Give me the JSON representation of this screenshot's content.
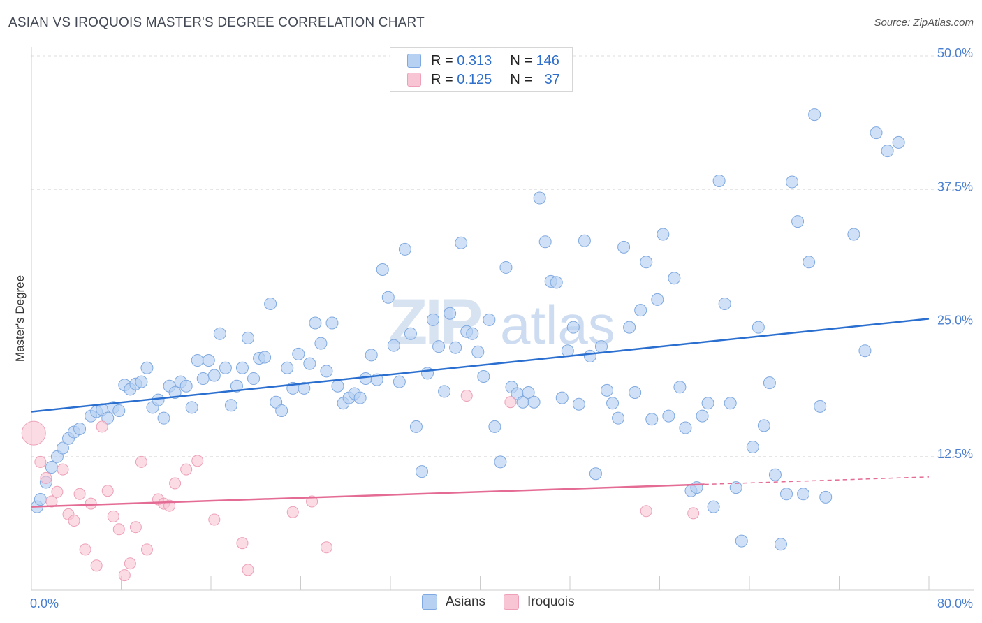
{
  "title": "ASIAN VS IROQUOIS MASTER'S DEGREE CORRELATION CHART",
  "source": "Source: ZipAtlas.com",
  "watermark": {
    "part1": "ZIP",
    "part2": "atlas"
  },
  "legend": {
    "rows": [
      {
        "r_label": "R =",
        "r_value": "0.313",
        "n_label": "N =",
        "n_value": "146"
      },
      {
        "r_label": "R =",
        "r_value": "0.125",
        "n_label": "N =",
        "n_value": "37"
      }
    ]
  },
  "colors": {
    "asians_fill": "#b7d1f2",
    "asians_stroke": "#7fa9e0",
    "asians_line": "#2a6fd0",
    "iroquois_fill": "#f8c5d4",
    "iroquois_stroke": "#eda0b8",
    "iroquois_line": "#e46b94",
    "tick_text": "#4a7fd0",
    "grid": "#dddddd"
  },
  "chart_data": {
    "type": "scatter",
    "title": "ASIAN VS IROQUOIS MASTER'S DEGREE CORRELATION CHART",
    "xlabel": "",
    "ylabel": "Master's Degree",
    "xlim": [
      0,
      80
    ],
    "ylim": [
      0,
      50
    ],
    "x_tick_labels": [
      "0.0%",
      "80.0%"
    ],
    "y_ticks": [
      12.5,
      25.0,
      37.5,
      50.0
    ],
    "y_tick_labels": [
      "12.5%",
      "25.0%",
      "37.5%",
      "50.0%"
    ],
    "grid": true,
    "legend_position": "top-center",
    "series": [
      {
        "name": "Asians",
        "r": 0.313,
        "n": 146,
        "trend": {
          "x": [
            0,
            80
          ],
          "y": [
            16.7,
            25.4
          ],
          "dashed_from": null
        },
        "points": [
          [
            0.5,
            7.8
          ],
          [
            0.8,
            8.5
          ],
          [
            1.3,
            10.1
          ],
          [
            1.8,
            11.5
          ],
          [
            2.3,
            12.5
          ],
          [
            2.8,
            13.3
          ],
          [
            3.3,
            14.2
          ],
          [
            3.8,
            14.8
          ],
          [
            4.3,
            15.1
          ],
          [
            5.3,
            16.3
          ],
          [
            5.8,
            16.7
          ],
          [
            6.3,
            16.9
          ],
          [
            6.8,
            16.1
          ],
          [
            7.3,
            17.1
          ],
          [
            7.8,
            16.8
          ],
          [
            8.3,
            19.2
          ],
          [
            8.8,
            18.8
          ],
          [
            9.3,
            19.3
          ],
          [
            9.8,
            19.5
          ],
          [
            10.3,
            20.8
          ],
          [
            10.8,
            17.1
          ],
          [
            11.3,
            17.8
          ],
          [
            11.8,
            16.1
          ],
          [
            12.3,
            19.1
          ],
          [
            12.8,
            18.5
          ],
          [
            13.3,
            19.5
          ],
          [
            13.8,
            19.1
          ],
          [
            14.3,
            17.1
          ],
          [
            14.8,
            21.5
          ],
          [
            15.3,
            19.8
          ],
          [
            15.8,
            21.5
          ],
          [
            16.3,
            20.1
          ],
          [
            16.8,
            24.0
          ],
          [
            17.3,
            20.8
          ],
          [
            17.8,
            17.3
          ],
          [
            18.3,
            19.1
          ],
          [
            18.8,
            20.8
          ],
          [
            19.3,
            23.6
          ],
          [
            19.8,
            19.8
          ],
          [
            20.3,
            21.7
          ],
          [
            20.8,
            21.8
          ],
          [
            21.3,
            26.8
          ],
          [
            21.8,
            17.6
          ],
          [
            22.3,
            16.8
          ],
          [
            22.8,
            20.8
          ],
          [
            23.3,
            18.9
          ],
          [
            23.8,
            22.1
          ],
          [
            24.3,
            18.9
          ],
          [
            24.8,
            21.2
          ],
          [
            25.3,
            25.0
          ],
          [
            25.8,
            23.1
          ],
          [
            26.3,
            20.5
          ],
          [
            26.8,
            25.0
          ],
          [
            27.3,
            19.1
          ],
          [
            27.8,
            17.5
          ],
          [
            28.3,
            18.0
          ],
          [
            28.8,
            18.4
          ],
          [
            29.3,
            18.0
          ],
          [
            29.8,
            19.8
          ],
          [
            30.3,
            22.0
          ],
          [
            30.8,
            19.7
          ],
          [
            31.3,
            30.0
          ],
          [
            31.8,
            27.4
          ],
          [
            32.3,
            22.9
          ],
          [
            32.8,
            19.5
          ],
          [
            33.3,
            31.9
          ],
          [
            33.8,
            24.0
          ],
          [
            34.3,
            15.3
          ],
          [
            34.8,
            11.1
          ],
          [
            35.3,
            20.3
          ],
          [
            35.8,
            25.3
          ],
          [
            36.3,
            22.8
          ],
          [
            36.8,
            18.6
          ],
          [
            37.3,
            25.9
          ],
          [
            37.8,
            22.7
          ],
          [
            38.3,
            32.5
          ],
          [
            38.8,
            24.2
          ],
          [
            39.3,
            24.0
          ],
          [
            39.8,
            22.3
          ],
          [
            40.3,
            20.0
          ],
          [
            40.8,
            25.3
          ],
          [
            41.3,
            15.3
          ],
          [
            41.8,
            12.0
          ],
          [
            42.3,
            30.2
          ],
          [
            42.8,
            19.0
          ],
          [
            43.3,
            18.4
          ],
          [
            43.8,
            17.6
          ],
          [
            44.3,
            18.5
          ],
          [
            44.8,
            17.6
          ],
          [
            45.3,
            36.7
          ],
          [
            45.8,
            32.6
          ],
          [
            46.3,
            28.9
          ],
          [
            46.8,
            28.8
          ],
          [
            47.3,
            18.0
          ],
          [
            47.8,
            22.4
          ],
          [
            48.3,
            24.6
          ],
          [
            48.8,
            17.4
          ],
          [
            49.3,
            32.7
          ],
          [
            49.8,
            21.9
          ],
          [
            50.3,
            10.9
          ],
          [
            50.8,
            22.8
          ],
          [
            51.3,
            18.7
          ],
          [
            51.8,
            17.5
          ],
          [
            52.3,
            16.1
          ],
          [
            52.8,
            32.1
          ],
          [
            53.3,
            24.6
          ],
          [
            53.8,
            18.5
          ],
          [
            54.3,
            26.2
          ],
          [
            54.8,
            30.7
          ],
          [
            55.3,
            16.0
          ],
          [
            55.8,
            27.2
          ],
          [
            56.3,
            33.3
          ],
          [
            56.8,
            16.3
          ],
          [
            57.3,
            29.2
          ],
          [
            57.8,
            19.0
          ],
          [
            58.3,
            15.2
          ],
          [
            58.8,
            9.3
          ],
          [
            59.3,
            9.6
          ],
          [
            59.8,
            16.3
          ],
          [
            60.3,
            17.5
          ],
          [
            60.8,
            7.8
          ],
          [
            61.3,
            38.3
          ],
          [
            61.8,
            26.8
          ],
          [
            62.3,
            17.5
          ],
          [
            62.8,
            9.6
          ],
          [
            63.3,
            4.6
          ],
          [
            64.3,
            13.4
          ],
          [
            64.8,
            24.6
          ],
          [
            65.3,
            15.4
          ],
          [
            65.8,
            19.4
          ],
          [
            66.3,
            10.8
          ],
          [
            66.8,
            4.3
          ],
          [
            67.3,
            9.0
          ],
          [
            67.8,
            38.2
          ],
          [
            68.3,
            34.5
          ],
          [
            68.8,
            9.0
          ],
          [
            69.3,
            30.7
          ],
          [
            69.8,
            44.5
          ],
          [
            70.3,
            17.2
          ],
          [
            70.8,
            8.7
          ],
          [
            73.3,
            33.3
          ],
          [
            74.3,
            22.4
          ],
          [
            75.3,
            42.8
          ],
          [
            76.3,
            41.1
          ],
          [
            77.3,
            41.9
          ]
        ]
      },
      {
        "name": "Iroquois",
        "r": 0.125,
        "n": 37,
        "trend": {
          "x": [
            0,
            80
          ],
          "y": [
            7.8,
            10.6
          ],
          "dashed_from": 60
        },
        "points": [
          [
            0.2,
            14.7
          ],
          [
            0.8,
            12.0
          ],
          [
            1.3,
            10.5
          ],
          [
            1.8,
            8.3
          ],
          [
            2.3,
            9.2
          ],
          [
            2.8,
            11.3
          ],
          [
            3.3,
            7.1
          ],
          [
            3.8,
            6.5
          ],
          [
            4.3,
            9.0
          ],
          [
            4.8,
            3.8
          ],
          [
            5.3,
            8.1
          ],
          [
            5.8,
            2.3
          ],
          [
            6.3,
            15.3
          ],
          [
            6.8,
            9.3
          ],
          [
            7.3,
            6.9
          ],
          [
            7.8,
            5.7
          ],
          [
            8.3,
            1.4
          ],
          [
            8.8,
            2.5
          ],
          [
            9.3,
            5.9
          ],
          [
            9.8,
            12.0
          ],
          [
            10.3,
            3.8
          ],
          [
            11.3,
            8.5
          ],
          [
            11.8,
            8.1
          ],
          [
            12.3,
            7.9
          ],
          [
            12.8,
            10.0
          ],
          [
            13.8,
            11.3
          ],
          [
            14.8,
            12.1
          ],
          [
            16.3,
            6.6
          ],
          [
            18.8,
            4.4
          ],
          [
            19.3,
            1.9
          ],
          [
            23.3,
            7.3
          ],
          [
            25.0,
            8.3
          ],
          [
            26.3,
            4.0
          ],
          [
            38.8,
            18.2
          ],
          [
            42.7,
            17.6
          ],
          [
            54.8,
            7.4
          ],
          [
            59.0,
            7.2
          ]
        ]
      }
    ]
  },
  "bottom_legend": [
    "Asians",
    "Iroquois"
  ]
}
